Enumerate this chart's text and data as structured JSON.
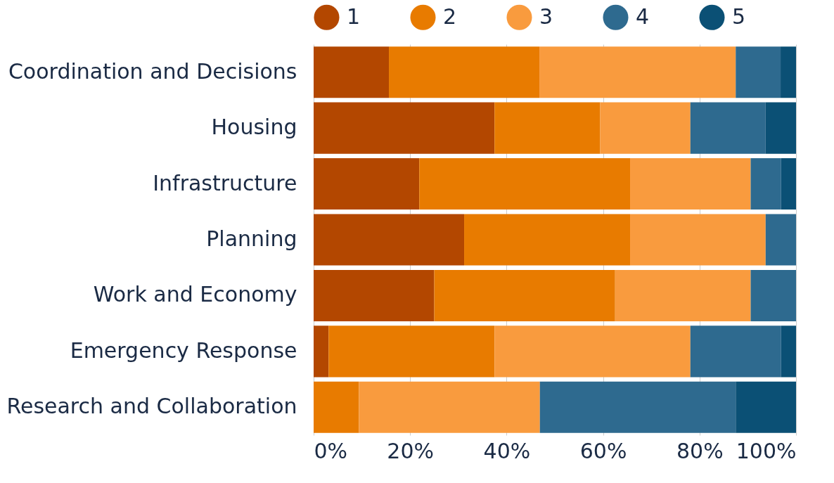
{
  "chart_data": {
    "type": "bar",
    "orientation": "horizontal",
    "stacked": true,
    "categories": [
      "Coordination and Decisions",
      "Housing",
      "Infrastructure",
      "Planning",
      "Work and Economy",
      "Emergency Response",
      "Research and Collaboration"
    ],
    "series": [
      {
        "name": "1",
        "color": "#b34700",
        "values": [
          15.6,
          37.5,
          21.9,
          31.2,
          25,
          3.1,
          0
        ]
      },
      {
        "name": "2",
        "color": "#e87b00",
        "values": [
          31.2,
          21.9,
          43.7,
          34.4,
          37.5,
          34.4,
          9.4
        ]
      },
      {
        "name": "3",
        "color": "#f99b3e",
        "values": [
          40.7,
          18.7,
          25,
          28.1,
          28.1,
          40.6,
          37.5
        ]
      },
      {
        "name": "4",
        "color": "#2e6a8f",
        "values": [
          9.3,
          15.6,
          6.3,
          6.3,
          9.4,
          18.8,
          40.6
        ]
      },
      {
        "name": "5",
        "color": "#0b5075",
        "values": [
          3.2,
          6.3,
          3.1,
          0,
          0,
          3.1,
          12.5
        ]
      }
    ],
    "xlim": [
      0,
      100
    ],
    "xticks": [
      {
        "value": 0,
        "label": "0%"
      },
      {
        "value": 20,
        "label": "20%"
      },
      {
        "value": 40,
        "label": "40%"
      },
      {
        "value": 60,
        "label": "60%"
      },
      {
        "value": 80,
        "label": "80%"
      },
      {
        "value": 100,
        "label": "100%"
      }
    ],
    "grid": "x",
    "legend": "top"
  }
}
